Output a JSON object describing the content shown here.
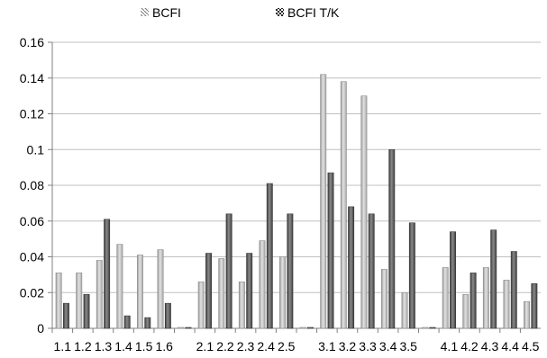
{
  "chart_data": {
    "type": "bar",
    "categories": [
      "1.1",
      "1.2",
      "1.3",
      "1.4",
      "1.5",
      "1.6",
      "",
      "2.1",
      "2.2",
      "2.3",
      "2.4",
      "2.5",
      "",
      "3.1",
      "3.2",
      "3.3",
      "3.4",
      "3.5",
      "",
      "4.1",
      "4.2",
      "4.3",
      "4.4",
      "4.5"
    ],
    "series": [
      {
        "name": "BCFI",
        "values": [
          0.031,
          0.031,
          0.038,
          0.047,
          0.041,
          0.044,
          0,
          0.026,
          0.039,
          0.026,
          0.049,
          0.04,
          0,
          0.142,
          0.138,
          0.13,
          0.033,
          0.02,
          0,
          0.034,
          0.019,
          0.034,
          0.027,
          0.015
        ]
      },
      {
        "name": "BCFI T/K",
        "values": [
          0.014,
          0.019,
          0.061,
          0.007,
          0.006,
          0.014,
          0,
          0.042,
          0.064,
          0.042,
          0.081,
          0.064,
          0,
          0.087,
          0.068,
          0.064,
          0.1,
          0.059,
          0,
          0.054,
          0.031,
          0.055,
          0.043,
          0.025
        ]
      }
    ],
    "ylim": [
      0,
      0.16
    ],
    "yticks": [
      "0",
      "0.02",
      "0.04",
      "0.06",
      "0.08",
      "0.1",
      "0.12",
      "0.14",
      "0.16"
    ],
    "grid": true,
    "legend_position": "top",
    "colors": {
      "BCFI": "#c8c8c8",
      "BCFI T/K": "#6e6e6e",
      "grid": "#c0c0c0",
      "axis": "#808080"
    }
  }
}
